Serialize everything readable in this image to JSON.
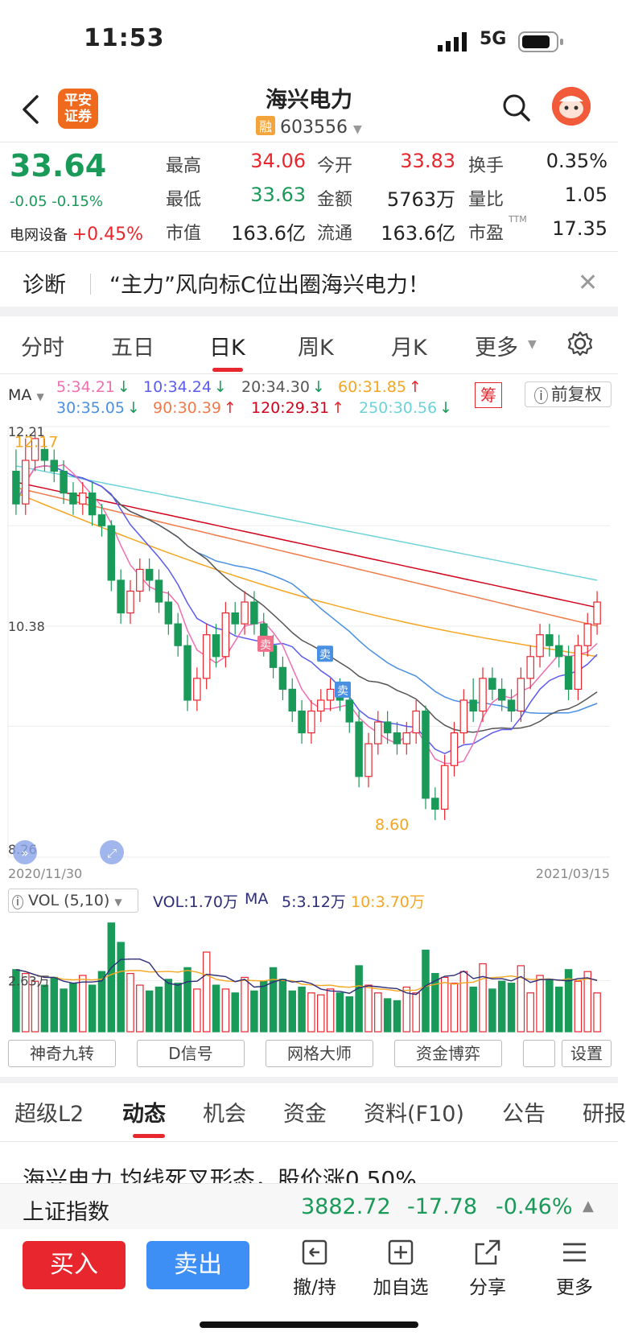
{
  "status": {
    "time": "11:53",
    "network": "5G"
  },
  "header": {
    "broker_logo": "平安证券",
    "stock_name": "海兴电力",
    "rong_badge": "融",
    "stock_code": "603556"
  },
  "quote": {
    "price": "33.64",
    "change": "-0.05 -0.15%",
    "sector_name": "电网设备",
    "sector_change": "+0.45%",
    "fields": [
      {
        "label": "最高",
        "value": "34.06",
        "color": "red"
      },
      {
        "label": "今开",
        "value": "33.83",
        "color": "red"
      },
      {
        "label": "换手",
        "value": "0.35%",
        "color": "black"
      },
      {
        "label": "最低",
        "value": "33.63",
        "color": "green"
      },
      {
        "label": "金额",
        "value": "5763万",
        "color": "black"
      },
      {
        "label": "量比",
        "value": "1.05",
        "color": "black"
      },
      {
        "label": "市值",
        "value": "163.6亿",
        "color": "black"
      },
      {
        "label": "流通",
        "value": "163.6亿",
        "color": "black"
      },
      {
        "label": "市盈",
        "value": "17.35",
        "color": "black"
      }
    ],
    "ttm": "TTM"
  },
  "diagnosis": {
    "label": "诊断",
    "text": "“主力”风向标C位出圈海兴电力！"
  },
  "chart_tabs": [
    "分时",
    "五日",
    "日K",
    "周K",
    "月K",
    "更多"
  ],
  "active_chart_tab": "日K",
  "ma_legend": {
    "prefix": "MA",
    "items": [
      {
        "text": "5:34.21",
        "arrow": "↓",
        "color": "#ef6fb0",
        "arrow_color": "#1a9a59"
      },
      {
        "text": "10:34.24",
        "arrow": "↓",
        "color": "#5b5bf0",
        "arrow_color": "#1a9a59"
      },
      {
        "text": "20:34.30",
        "arrow": "↓",
        "color": "#555555",
        "arrow_color": "#1a9a59"
      },
      {
        "text": "60:31.85",
        "arrow": "↑",
        "color": "#f5a623",
        "arrow_color": "#e8262d"
      },
      {
        "text": "30:35.05",
        "arrow": "↓",
        "color": "#4a90e2",
        "arrow_color": "#1a9a59"
      },
      {
        "text": "90:30.39",
        "arrow": "↑",
        "color": "#f07a4a",
        "arrow_color": "#e8262d"
      },
      {
        "text": "120:29.31",
        "arrow": "↑",
        "color": "#d0021b",
        "arrow_color": "#e8262d"
      },
      {
        "text": "250:30.56",
        "arrow": "↓",
        "color": "#6cd3d9",
        "arrow_color": "#1a9a59"
      }
    ],
    "chou": "筹",
    "fq": "前复权"
  },
  "chart_data": {
    "type": "candlestick",
    "x_start": "2020/11/30",
    "x_end": "2021/03/15",
    "y_labels": {
      "top": "12.21",
      "mid": "10.38",
      "bottom": "8.26"
    },
    "annotations": {
      "high": "12.17",
      "low": "8.60",
      "sell": "卖"
    },
    "ylim": [
      8.26,
      12.21
    ],
    "candles": [
      [
        11.8,
        11.5,
        12.0,
        11.4
      ],
      [
        11.5,
        11.9,
        12.1,
        11.4
      ],
      [
        11.9,
        12.1,
        12.17,
        11.8
      ],
      [
        12.0,
        11.9,
        12.1,
        11.8
      ],
      [
        11.9,
        11.8,
        12.0,
        11.7
      ],
      [
        11.8,
        11.6,
        11.9,
        11.5
      ],
      [
        11.6,
        11.5,
        11.7,
        11.4
      ],
      [
        11.5,
        11.6,
        11.7,
        11.4
      ],
      [
        11.6,
        11.4,
        11.7,
        11.3
      ],
      [
        11.4,
        11.3,
        11.5,
        11.2
      ],
      [
        11.3,
        10.8,
        11.35,
        10.7
      ],
      [
        10.8,
        10.5,
        10.9,
        10.4
      ],
      [
        10.5,
        10.7,
        10.8,
        10.4
      ],
      [
        10.7,
        10.9,
        11.0,
        10.6
      ],
      [
        10.9,
        10.8,
        11.0,
        10.7
      ],
      [
        10.8,
        10.6,
        10.9,
        10.5
      ],
      [
        10.6,
        10.4,
        10.7,
        10.3
      ],
      [
        10.4,
        10.2,
        10.5,
        10.1
      ],
      [
        10.2,
        9.7,
        10.3,
        9.6
      ],
      [
        9.7,
        9.9,
        10.0,
        9.6
      ],
      [
        9.9,
        10.3,
        10.4,
        9.8
      ],
      [
        10.3,
        10.1,
        10.4,
        10.0
      ],
      [
        10.1,
        10.5,
        10.6,
        10.0
      ],
      [
        10.5,
        10.4,
        10.6,
        10.3
      ],
      [
        10.4,
        10.6,
        10.7,
        10.3
      ],
      [
        10.6,
        10.4,
        10.7,
        10.3
      ],
      [
        10.4,
        10.2,
        10.5,
        10.1
      ],
      [
        10.2,
        10.0,
        10.3,
        9.9
      ],
      [
        10.0,
        9.8,
        10.1,
        9.7
      ],
      [
        9.8,
        9.6,
        9.9,
        9.5
      ],
      [
        9.6,
        9.4,
        9.7,
        9.3
      ],
      [
        9.4,
        9.6,
        9.7,
        9.3
      ],
      [
        9.6,
        9.7,
        9.8,
        9.5
      ],
      [
        9.7,
        9.8,
        9.9,
        9.6
      ],
      [
        9.8,
        9.7,
        9.9,
        9.6
      ],
      [
        9.7,
        9.5,
        9.8,
        9.4
      ],
      [
        9.5,
        9.0,
        9.6,
        8.9
      ],
      [
        9.0,
        9.3,
        9.4,
        8.9
      ],
      [
        9.3,
        9.5,
        9.6,
        9.2
      ],
      [
        9.5,
        9.4,
        9.6,
        9.3
      ],
      [
        9.4,
        9.3,
        9.5,
        9.2
      ],
      [
        9.3,
        9.4,
        9.5,
        9.2
      ],
      [
        9.4,
        9.6,
        9.7,
        9.3
      ],
      [
        9.6,
        8.8,
        9.65,
        8.7
      ],
      [
        8.8,
        8.7,
        8.9,
        8.6
      ],
      [
        8.7,
        9.1,
        9.2,
        8.6
      ],
      [
        9.1,
        9.4,
        9.5,
        9.0
      ],
      [
        9.4,
        9.7,
        9.8,
        9.3
      ],
      [
        9.7,
        9.6,
        9.9,
        9.5
      ],
      [
        9.6,
        9.9,
        10.0,
        9.5
      ],
      [
        9.9,
        9.8,
        10.0,
        9.7
      ],
      [
        9.8,
        9.7,
        9.9,
        9.6
      ],
      [
        9.7,
        9.6,
        9.8,
        9.5
      ],
      [
        9.6,
        9.9,
        10.0,
        9.5
      ],
      [
        9.9,
        10.1,
        10.2,
        9.8
      ],
      [
        10.1,
        10.3,
        10.4,
        10.0
      ],
      [
        10.3,
        10.2,
        10.4,
        10.1
      ],
      [
        10.2,
        10.1,
        10.3,
        10.0
      ],
      [
        10.1,
        9.8,
        10.2,
        9.7
      ],
      [
        9.8,
        10.2,
        10.3,
        9.7
      ],
      [
        10.2,
        10.4,
        10.5,
        10.1
      ],
      [
        10.4,
        10.6,
        10.7,
        10.3
      ]
    ]
  },
  "volume": {
    "label": "VOL (5,10)",
    "vol_text": "VOL:1.70万",
    "ma_label": "MA",
    "ma5_text": "5:3.12万",
    "ma10_text": "10:3.70万",
    "scale_label": "2.63万"
  },
  "tools": [
    "神奇九转",
    "D信号",
    "网格大师",
    "资金博弈",
    "设置"
  ],
  "bottom_tabs": [
    "超级L2",
    "动态",
    "机会",
    "资金",
    "资料(F10)",
    "公告",
    "研报"
  ],
  "active_bottom_tab": "动态",
  "news_headline": "海兴电力 均线死叉形态，股价涨0.50%",
  "index": {
    "name": "上证指数",
    "value": "3882.72",
    "change": "-17.78",
    "change_pct": "-0.46%"
  },
  "footer": {
    "buy": "买入",
    "sell": "卖出",
    "actions": [
      "撤/持",
      "加自选",
      "分享",
      "更多"
    ]
  }
}
